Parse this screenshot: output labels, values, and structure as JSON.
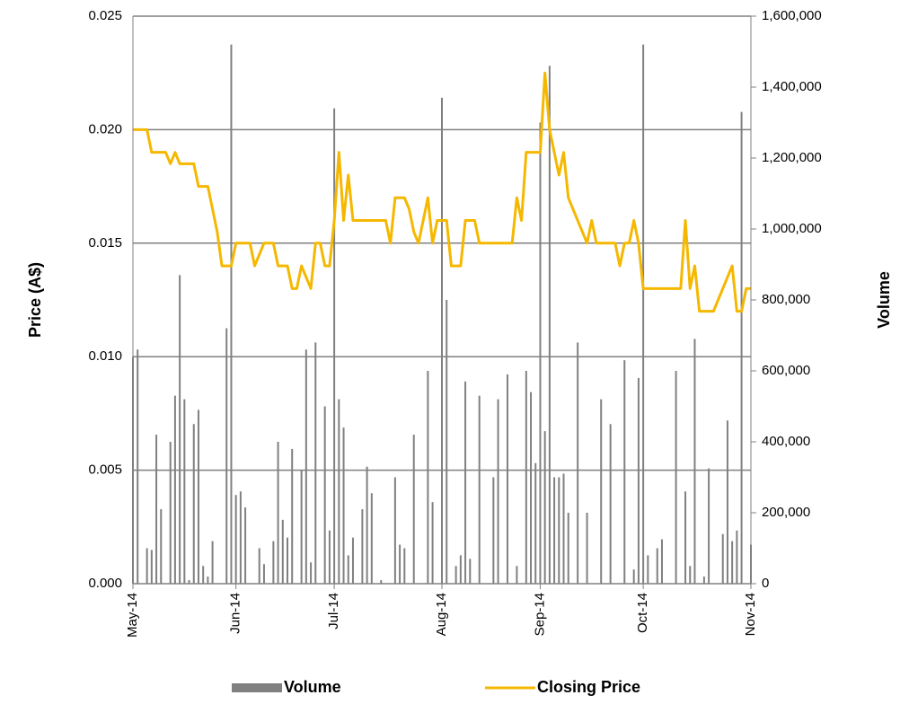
{
  "chart_data": {
    "type": "bar_line",
    "y_axis_label": "Price (A$)",
    "y2_axis_label": "Volume",
    "categories": [
      "May-14",
      null,
      null,
      null,
      null,
      null,
      null,
      null,
      null,
      null,
      null,
      null,
      null,
      null,
      null,
      null,
      null,
      null,
      null,
      null,
      null,
      null,
      "Jun-14",
      null,
      null,
      null,
      null,
      null,
      null,
      null,
      null,
      null,
      null,
      null,
      null,
      null,
      null,
      null,
      null,
      null,
      null,
      null,
      null,
      "Jul-14",
      null,
      null,
      null,
      null,
      null,
      null,
      null,
      null,
      null,
      null,
      null,
      null,
      null,
      null,
      null,
      null,
      null,
      null,
      null,
      null,
      null,
      null,
      "Aug-14",
      null,
      null,
      null,
      null,
      null,
      null,
      null,
      null,
      null,
      null,
      null,
      null,
      null,
      null,
      null,
      null,
      null,
      null,
      null,
      null,
      "Sep-14",
      null,
      null,
      null,
      null,
      null,
      null,
      null,
      null,
      null,
      null,
      null,
      null,
      null,
      null,
      null,
      null,
      null,
      null,
      null,
      null,
      null,
      "Oct-14",
      null,
      null,
      null,
      null,
      null,
      null,
      null,
      null,
      null,
      null,
      null,
      null,
      null,
      null,
      null,
      null,
      null,
      null,
      null,
      null,
      null,
      null,
      "Nov-14"
    ],
    "series": [
      {
        "name": "Volume",
        "type": "bar",
        "axis": "y2",
        "color": "#808080",
        "values": [
          640000,
          660000,
          0,
          100000,
          95000,
          420000,
          210000,
          0,
          400000,
          530000,
          870000,
          520000,
          10000,
          450000,
          490000,
          50000,
          20000,
          120000,
          0,
          0,
          720000,
          1520000,
          250000,
          260000,
          215000,
          0,
          0,
          100000,
          55000,
          0,
          120000,
          400000,
          180000,
          130000,
          380000,
          0,
          320000,
          660000,
          60000,
          680000,
          0,
          500000,
          150000,
          1340000,
          520000,
          440000,
          80000,
          130000,
          0,
          210000,
          330000,
          255000,
          0,
          10000,
          0,
          0,
          300000,
          110000,
          100000,
          0,
          420000,
          0,
          0,
          600000,
          230000,
          0,
          1370000,
          800000,
          0,
          50000,
          80000,
          570000,
          70000,
          0,
          530000,
          0,
          0,
          300000,
          520000,
          0,
          590000,
          0,
          50000,
          0,
          600000,
          540000,
          340000,
          1300000,
          430000,
          1460000,
          300000,
          300000,
          310000,
          200000,
          0,
          680000,
          0,
          200000,
          0,
          0,
          520000,
          0,
          450000,
          0,
          0,
          630000,
          0,
          40000,
          580000,
          1520000,
          80000,
          0,
          100000,
          125000,
          0,
          0,
          600000,
          0,
          260000,
          50000,
          690000,
          0,
          20000,
          325000,
          0,
          0,
          140000,
          460000,
          120000,
          150000,
          1330000,
          0,
          110000
        ]
      },
      {
        "name": "Closing Price",
        "type": "line",
        "axis": "y",
        "color": "#f5b800",
        "values": [
          0.02,
          0.02,
          0.02,
          0.02,
          0.019,
          0.019,
          0.019,
          0.019,
          0.0185,
          0.019,
          0.0185,
          0.0185,
          0.0185,
          0.0185,
          0.0175,
          0.0175,
          0.0175,
          0.0165,
          0.0155,
          0.014,
          0.014,
          0.014,
          0.015,
          0.015,
          0.015,
          0.015,
          0.014,
          0.0145,
          0.015,
          0.015,
          0.015,
          0.014,
          0.014,
          0.014,
          0.013,
          0.013,
          0.014,
          0.0135,
          0.013,
          0.015,
          0.015,
          0.014,
          0.014,
          0.016,
          0.019,
          0.016,
          0.018,
          0.016,
          0.016,
          0.016,
          0.016,
          0.016,
          0.016,
          0.016,
          0.016,
          0.015,
          0.017,
          0.017,
          0.017,
          0.0165,
          0.0155,
          0.015,
          0.016,
          0.017,
          0.015,
          0.016,
          0.016,
          0.016,
          0.014,
          0.014,
          0.014,
          0.016,
          0.016,
          0.016,
          0.015,
          0.015,
          0.015,
          0.015,
          0.015,
          0.015,
          0.015,
          0.015,
          0.017,
          0.016,
          0.019,
          0.019,
          0.019,
          0.019,
          0.0225,
          0.02,
          0.019,
          0.018,
          0.019,
          0.017,
          0.0165,
          0.016,
          0.0155,
          0.015,
          0.016,
          0.015,
          0.015,
          0.015,
          0.015,
          0.015,
          0.014,
          0.015,
          0.015,
          0.016,
          0.015,
          0.013,
          0.013,
          0.013,
          0.013,
          0.013,
          0.013,
          0.013,
          0.013,
          0.013,
          0.016,
          0.013,
          0.014,
          0.012,
          0.012,
          0.012,
          0.012,
          0.0125,
          0.013,
          0.0135,
          0.014,
          0.012,
          0.012,
          0.013,
          0.013
        ]
      }
    ],
    "ylim": [
      0,
      0.025
    ],
    "yticks": [
      {
        "value": 0,
        "label": "0.000"
      },
      {
        "value": 0.005,
        "label": "0.005"
      },
      {
        "value": 0.01,
        "label": "0.010"
      },
      {
        "value": 0.015,
        "label": "0.015"
      },
      {
        "value": 0.02,
        "label": "0.020"
      },
      {
        "value": 0.025,
        "label": "0.025"
      }
    ],
    "y2lim": [
      0,
      1600000
    ],
    "y2ticks": [
      0,
      {
        "value": 200000,
        "label": "200,000"
      },
      {
        "value": 400000,
        "label": "400,000"
      },
      {
        "value": 600000,
        "label": "600,000"
      },
      {
        "value": 800000,
        "label": "800,000"
      },
      {
        "value": 1000000,
        "label": "1,000,000"
      },
      {
        "value": 1200000,
        "label": "1,200,000"
      },
      {
        "value": 1400000,
        "label": "1,400,000"
      },
      {
        "value": 1600000,
        "label": "1,600,000"
      }
    ],
    "grid": true,
    "legend": "bottom"
  }
}
